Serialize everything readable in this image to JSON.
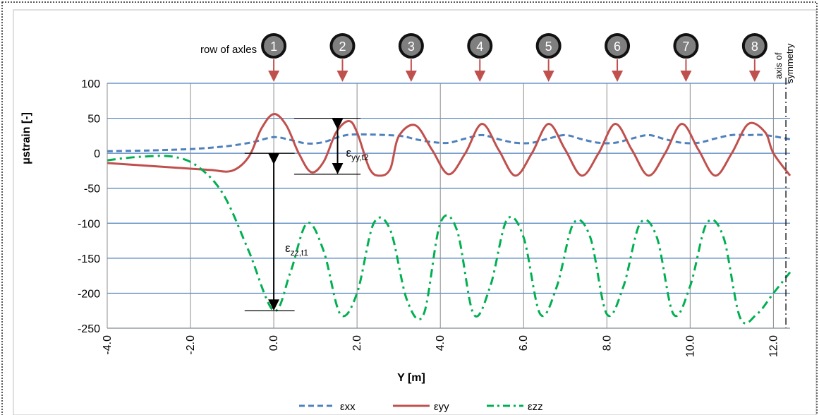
{
  "chart_data": {
    "type": "line",
    "xlabel": "Y [m]",
    "ylabel": "μstrain [-]",
    "xlim": [
      -4.0,
      12.4
    ],
    "ylim": [
      -250,
      100
    ],
    "x_ticks": [
      -4,
      -2,
      0,
      2,
      4,
      6,
      8,
      10,
      12
    ],
    "x_tick_labels": [
      "-4.0",
      "-2.0",
      "0.0",
      "2.0",
      "4.0",
      "6.0",
      "8.0",
      "10.0",
      "12.0"
    ],
    "y_ticks": [
      100,
      50,
      0,
      -50,
      -100,
      -150,
      -200,
      -250
    ],
    "y_tick_labels": [
      "100",
      "50",
      "0",
      "-50",
      "-100",
      "-150",
      "-200",
      "-250"
    ],
    "grid": true,
    "legend_position": "bottom-center",
    "series": [
      {
        "name": "εxx",
        "color": "#4f81bd",
        "style": "dashed",
        "x": [
          -4.0,
          -3.0,
          -2.0,
          -1.5,
          -1.0,
          -0.5,
          0.0,
          0.4,
          0.8,
          1.2,
          1.6,
          2.0,
          3.0,
          3.4,
          3.8,
          4.2,
          4.6,
          5.0,
          5.4,
          5.8,
          6.2,
          6.6,
          7.0,
          7.4,
          7.8,
          8.2,
          8.6,
          9.0,
          9.4,
          9.8,
          10.2,
          10.6,
          11.0,
          11.4,
          11.8,
          12.4
        ],
        "values": [
          3,
          4,
          6,
          8,
          11,
          16,
          23,
          19,
          14,
          16,
          24,
          27,
          25,
          20,
          16,
          15,
          21,
          26,
          20,
          15,
          15,
          21,
          26,
          20,
          15,
          15,
          21,
          26,
          20,
          15,
          15,
          21,
          26,
          26,
          26,
          20
        ]
      },
      {
        "name": "εyy",
        "color": "#c0504d",
        "style": "solid",
        "x": [
          -4.0,
          -3.0,
          -2.0,
          -1.5,
          -1.0,
          -0.6,
          -0.3,
          0.0,
          0.3,
          0.6,
          0.9,
          1.2,
          1.5,
          1.8,
          2.0,
          2.3,
          2.55,
          2.8,
          3.0,
          3.4,
          3.8,
          4.2,
          4.6,
          5.0,
          5.4,
          5.8,
          6.2,
          6.6,
          7.0,
          7.4,
          7.8,
          8.2,
          8.6,
          9.0,
          9.4,
          9.8,
          10.2,
          10.6,
          11.0,
          11.4,
          11.8,
          12.0,
          12.4
        ],
        "values": [
          -14,
          -18,
          -22,
          -24,
          -25,
          -5,
          35,
          56,
          40,
          0,
          -27,
          -12,
          30,
          46,
          30,
          -22,
          -32,
          -22,
          24,
          40,
          5,
          -30,
          0,
          42,
          5,
          -32,
          0,
          42,
          5,
          -32,
          0,
          42,
          5,
          -32,
          0,
          42,
          5,
          -32,
          0,
          42,
          30,
          0,
          -32
        ]
      },
      {
        "name": "εzz",
        "color": "#00b050",
        "style": "dash-dot",
        "x": [
          -4.0,
          -3.2,
          -2.4,
          -1.8,
          -1.2,
          -0.6,
          0.0,
          0.4,
          0.8,
          1.2,
          1.6,
          2.0,
          2.4,
          2.8,
          3.2,
          3.6,
          4.0,
          4.4,
          4.8,
          5.2,
          5.6,
          6.0,
          6.4,
          6.8,
          7.2,
          7.6,
          8.0,
          8.4,
          8.8,
          9.2,
          9.6,
          10.0,
          10.4,
          10.8,
          11.2,
          11.6,
          12.0,
          12.4
        ],
        "values": [
          -10,
          -5,
          -5,
          -20,
          -60,
          -140,
          -225,
          -170,
          -100,
          -140,
          -230,
          -200,
          -100,
          -110,
          -210,
          -230,
          -100,
          -110,
          -230,
          -190,
          -95,
          -120,
          -230,
          -190,
          -100,
          -120,
          -230,
          -190,
          -100,
          -120,
          -230,
          -190,
          -100,
          -120,
          -235,
          -230,
          -200,
          -170
        ]
      }
    ],
    "axles": {
      "label": "row of axles",
      "numbers": [
        "1",
        "2",
        "3",
        "4",
        "5",
        "6",
        "7",
        "8"
      ],
      "positions": [
        0.0,
        1.65,
        3.3,
        4.95,
        6.6,
        8.25,
        9.9,
        11.55
      ]
    },
    "axis_of_symmetry": {
      "line1": "axis of",
      "line2": "symmetry",
      "x": 12.3
    },
    "annotations": {
      "eyy": {
        "main": "ε",
        "sub": "yy,t2",
        "x": 1.6,
        "y_top": 50,
        "y_bottom": -30
      },
      "ezz": {
        "main": "ε",
        "sub": "zz,t1",
        "x": 0.0,
        "y_top": 0,
        "y_bottom": -225
      }
    }
  }
}
